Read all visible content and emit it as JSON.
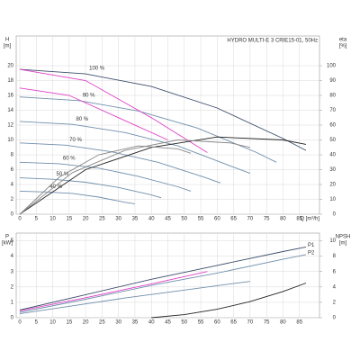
{
  "chart_data": [
    {
      "type": "line",
      "title": "HYDRO MULTI-E 3 CRIE15-01, 50Hz",
      "ylabel": "H",
      "yunit": "[m]",
      "y2label": "eta",
      "y2unit": "[%]",
      "xlabel": "Q [m³/h]",
      "xlim": [
        0,
        90
      ],
      "xticks": [
        0,
        5,
        10,
        15,
        20,
        25,
        30,
        35,
        40,
        45,
        50,
        55,
        60,
        65,
        70,
        75,
        80,
        85
      ],
      "ylim": [
        0,
        24
      ],
      "yticks": [
        0,
        2,
        4,
        6,
        8,
        10,
        12,
        14,
        16,
        18,
        20
      ],
      "y2lim": [
        0,
        120
      ],
      "y2ticks": [
        0,
        10,
        20,
        30,
        40,
        50,
        60,
        70,
        80,
        90,
        100
      ],
      "grid": true,
      "series": [
        {
          "name": "100 %",
          "color": "#3d4e6b",
          "x": [
            0,
            20,
            40,
            60,
            80,
            87
          ],
          "values": [
            19.5,
            18.9,
            17.2,
            14.3,
            10.2,
            8.6
          ]
        },
        {
          "name": "90 %",
          "color": "#6f8fab",
          "x": [
            0,
            18,
            36,
            54,
            72,
            78
          ],
          "values": [
            15.8,
            15.3,
            13.9,
            11.6,
            8.3,
            7.0
          ]
        },
        {
          "name": "80 %",
          "color": "#6f8fab",
          "x": [
            0,
            16,
            32,
            48,
            64,
            70
          ],
          "values": [
            12.5,
            12.1,
            11.0,
            9.2,
            6.5,
            5.5
          ]
        },
        {
          "name": "70 %",
          "color": "#6f8fab",
          "x": [
            0,
            14,
            28,
            42,
            56,
            61
          ],
          "values": [
            9.6,
            9.3,
            8.4,
            7.0,
            5.0,
            4.2
          ]
        },
        {
          "name": "60 %",
          "color": "#6f8fab",
          "x": [
            0,
            12,
            24,
            36,
            48,
            52
          ],
          "values": [
            7.0,
            6.8,
            6.2,
            5.1,
            3.7,
            3.1
          ]
        },
        {
          "name": "50 %",
          "color": "#6f8fab",
          "x": [
            0,
            10,
            20,
            30,
            40,
            43
          ],
          "values": [
            4.9,
            4.7,
            4.3,
            3.6,
            2.6,
            2.2
          ]
        },
        {
          "name": "40 %",
          "color": "#6f8fab",
          "x": [
            0,
            8,
            16,
            24,
            32,
            35
          ],
          "values": [
            3.1,
            3.0,
            2.8,
            2.3,
            1.6,
            1.4
          ]
        },
        {
          "color": "#e040c8",
          "x": [
            0,
            20,
            40,
            57
          ],
          "values": [
            19.5,
            18.0,
            13.0,
            8.3
          ]
        },
        {
          "color": "#e040c8",
          "x": [
            0,
            15,
            30,
            45
          ],
          "values": [
            17.0,
            16.0,
            13.0,
            10.0
          ]
        },
        {
          "color": "#222222",
          "axis": "y2",
          "x": [
            0,
            20,
            40,
            60,
            80,
            87
          ],
          "values": [
            0,
            30,
            45,
            52,
            50,
            47
          ]
        },
        {
          "color": "#888888",
          "axis": "y2",
          "x": [
            0,
            16,
            32,
            48,
            64,
            70
          ],
          "values": [
            0,
            28,
            43,
            50,
            48,
            45
          ]
        },
        {
          "color": "#888888",
          "axis": "y2",
          "x": [
            0,
            12,
            24,
            36,
            48,
            52
          ],
          "values": [
            0,
            25,
            40,
            46,
            44,
            41
          ]
        }
      ]
    },
    {
      "type": "line",
      "ylabel": "P",
      "yunit": "[kW]",
      "y2label": "NPSH",
      "y2unit": "[m]",
      "xlim": [
        0,
        90
      ],
      "xticks": [
        0,
        5,
        10,
        15,
        20,
        25,
        30,
        35,
        40,
        45,
        50,
        55,
        60,
        65,
        70,
        75,
        80,
        85
      ],
      "ylim": [
        0,
        5.5
      ],
      "yticks": [
        0,
        1,
        2,
        3,
        4,
        5
      ],
      "y2lim": [
        0,
        11
      ],
      "y2ticks": [
        0,
        2,
        4,
        6,
        8,
        10
      ],
      "grid": true,
      "series": [
        {
          "name": "P1",
          "color": "#3d4e6b",
          "x": [
            0,
            20,
            40,
            60,
            80,
            87
          ],
          "values": [
            0.5,
            1.5,
            2.5,
            3.4,
            4.3,
            4.6
          ]
        },
        {
          "name": "P2",
          "color": "#6f8fab",
          "x": [
            0,
            20,
            40,
            60,
            80,
            87
          ],
          "values": [
            0.35,
            1.2,
            2.1,
            2.9,
            3.8,
            4.1
          ]
        },
        {
          "color": "#6f8fab",
          "x": [
            0,
            16,
            32,
            48,
            64,
            70
          ],
          "values": [
            0.26,
            0.77,
            1.28,
            1.74,
            2.2,
            2.36
          ]
        },
        {
          "color": "#e040c8",
          "x": [
            0,
            20,
            40,
            57
          ],
          "values": [
            0.45,
            1.3,
            2.2,
            3.0
          ]
        },
        {
          "color": "#222222",
          "axis": "y2",
          "x": [
            40,
            50,
            60,
            70,
            80,
            87
          ],
          "values": [
            0,
            0.4,
            1.1,
            2.1,
            3.4,
            4.5
          ]
        }
      ]
    }
  ]
}
